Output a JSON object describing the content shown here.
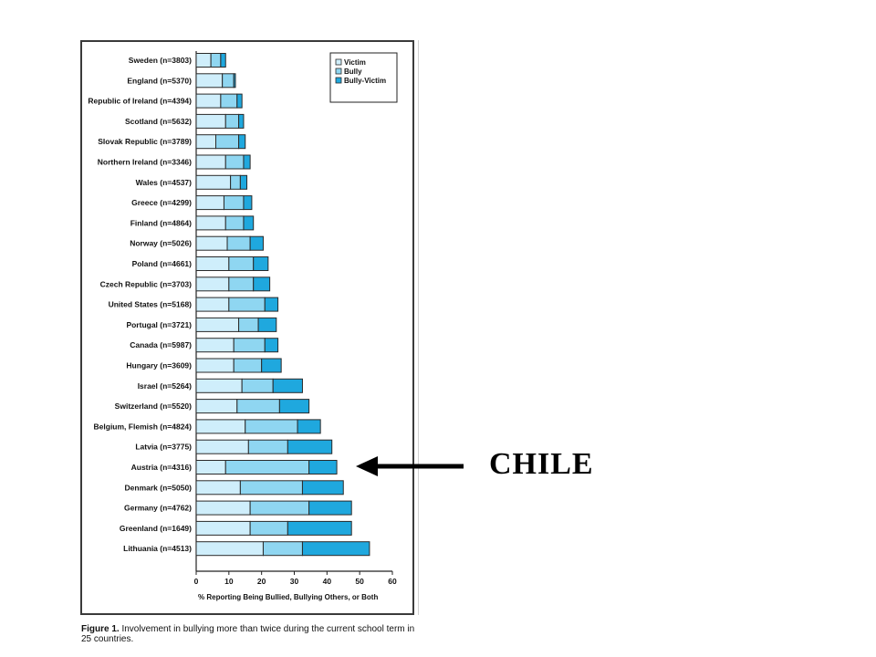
{
  "figure_caption": {
    "label": "Figure 1.",
    "text": "Involvement in bullying more than twice during the current school term in 25 countries."
  },
  "annotation": {
    "text": "CHILE"
  },
  "colors": {
    "victim": "#cfeefb",
    "bully": "#8fd6f1",
    "bully_victim": "#1fa8de",
    "bar_stroke": "#2a2a2a",
    "arrow": "#000000"
  },
  "chart_data": {
    "type": "bar",
    "orientation": "horizontal",
    "stacked": true,
    "categories": [
      "Sweden (n=3803)",
      "England (n=5370)",
      "Republic of Ireland (n=4394)",
      "Scotland (n=5632)",
      "Slovak Republic (n=3789)",
      "Northern Ireland (n=3346)",
      "Wales (n=4537)",
      "Greece (n=4299)",
      "Finland (n=4864)",
      "Norway (n=5026)",
      "Poland (n=4661)",
      "Czech Republic (n=3703)",
      "United States (n=5168)",
      "Portugal (n=3721)",
      "Canada (n=5987)",
      "Hungary (n=3609)",
      "Israel (n=5264)",
      "Switzerland (n=5520)",
      "Belgium, Flemish (n=4824)",
      "Latvia (n=3775)",
      "Austria (n=4316)",
      "Denmark (n=5050)",
      "Germany (n=4762)",
      "Greenland (n=1649)",
      "Lithuania (n=4513)"
    ],
    "series": [
      {
        "name": "Victim",
        "values": [
          4.5,
          8,
          7.5,
          9,
          6,
          9,
          10.5,
          8.5,
          9,
          9.5,
          10,
          10,
          10,
          13,
          11.5,
          11.5,
          14,
          12.5,
          15,
          16,
          9,
          13.5,
          16.5,
          16.5,
          20.5
        ]
      },
      {
        "name": "Bully",
        "values": [
          3,
          3.5,
          5,
          4,
          7,
          5.5,
          3,
          6,
          5.5,
          7,
          7.5,
          7.5,
          11,
          6,
          9.5,
          8.5,
          9.5,
          13,
          16,
          12,
          25.5,
          19,
          18,
          11.5,
          12
        ]
      },
      {
        "name": "Bully-Victim",
        "values": [
          1.5,
          0.5,
          1.5,
          1.5,
          2,
          2,
          2,
          2.5,
          3,
          4,
          4.5,
          5,
          4,
          5.5,
          4,
          6,
          9,
          9,
          7,
          13.5,
          8.5,
          12.5,
          13,
          19.5,
          20.5
        ]
      }
    ],
    "xlabel": "% Reporting Being Bullied, Bullying Others, or Both",
    "xlim": [
      0,
      60
    ],
    "xticks": [
      0,
      10,
      20,
      30,
      40,
      50,
      60
    ],
    "legend_position": "top-right",
    "grid": false
  }
}
